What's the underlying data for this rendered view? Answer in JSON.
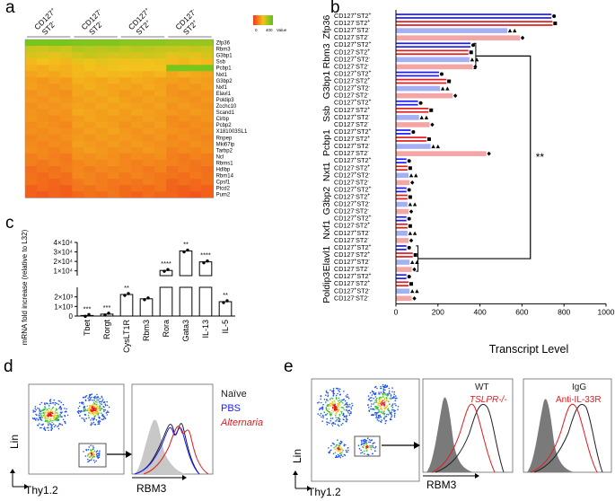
{
  "figure": {
    "panels": {
      "a": "a",
      "b": "b",
      "c": "c",
      "d": "d",
      "e": "e"
    }
  },
  "panel_a": {
    "groups": [
      "CD127+ ST2-",
      "CD127- ST2-",
      "CD127+ ST2+",
      "CD127- ST2+"
    ],
    "group_lines": [
      [
        "CD127",
        "+",
        "ST2",
        "-"
      ],
      [
        "CD127",
        "-",
        "ST2",
        "-"
      ],
      [
        "CD127",
        "+",
        "ST2",
        "+"
      ],
      [
        "CD127",
        "-",
        "ST2",
        "+"
      ]
    ],
    "genes": [
      "Zfp36",
      "Rbm3",
      "G3bp1",
      "Ssb",
      "Pcbp1",
      "Nxt1",
      "G3bp2",
      "Nxf1",
      "Elavl1",
      "Poldip3",
      "Zcchc10",
      "Scand1",
      "Cirbp",
      "Pcbp2",
      "X181003SL1",
      "Rnpep",
      "Mki67ip",
      "Tarbp2",
      "Ncl",
      "Rbms1",
      "Hdlbp",
      "Rbm14",
      "Cpsf1",
      "Ptcd2",
      "Pum2"
    ],
    "legend": {
      "min_label": "0",
      "max_label": "400",
      "title": "Value"
    }
  },
  "chart_data": [
    {
      "type": "bar",
      "panel": "b",
      "xlabel": "Transcript Level",
      "xlim": [
        0,
        1000
      ],
      "xticks": [
        "0",
        "200",
        "400",
        "600",
        "800",
        "1000"
      ],
      "significance": "**",
      "row_labels": [
        "CD127+ST2+",
        "CD127-ST2+",
        "CD127+ST2-",
        "CD127-ST2-"
      ],
      "row_label_lines": [
        [
          "CD127",
          "+",
          "ST2",
          "+"
        ],
        [
          "CD127",
          "-",
          "ST2",
          "+"
        ],
        [
          "CD127",
          "+",
          "ST2",
          "-"
        ],
        [
          "CD127",
          "-",
          "ST2",
          "-"
        ]
      ],
      "groups": [
        {
          "gene": "Zfp36",
          "values": [
            740,
            745,
            530,
            590
          ]
        },
        {
          "gene": "Rbm3",
          "values": [
            355,
            345,
            350,
            365
          ]
        },
        {
          "gene": "G3bp1",
          "values": [
            205,
            240,
            210,
            270
          ]
        },
        {
          "gene": "Ssb",
          "values": [
            105,
            155,
            110,
            160
          ]
        },
        {
          "gene": "Pcbp1",
          "values": [
            70,
            145,
            165,
            430
          ]
        },
        {
          "gene": "Nxt1",
          "values": [
            50,
            55,
            60,
            65
          ]
        },
        {
          "gene": "G3bp2",
          "values": [
            50,
            55,
            55,
            60
          ]
        },
        {
          "gene": "Nxf1",
          "values": [
            50,
            55,
            55,
            60
          ]
        },
        {
          "gene": "Elavl1",
          "values": [
            50,
            80,
            65,
            75
          ]
        },
        {
          "gene": "Poldip3",
          "values": [
            50,
            60,
            65,
            75
          ]
        }
      ]
    },
    {
      "type": "bar",
      "panel": "c",
      "ylabel": "mRNA fold increase (relative to L32)",
      "categories": [
        "Tbet",
        "Rorgt",
        "CysLT1R",
        "Rbm3",
        "Rora",
        "Gata3",
        "IL-13",
        "IL-5"
      ],
      "values": [
        60,
        200,
        2250,
        1800,
        10500,
        31000,
        19500,
        1500
      ],
      "significance": [
        "***",
        "***",
        "**",
        "",
        "****",
        "**",
        "****",
        "**"
      ],
      "yticks_lower": [
        "0",
        "1×10³",
        "2×10³"
      ],
      "yticks_upper": [
        "1×10⁴",
        "2×10⁴",
        "3×10⁴",
        "4×10⁴"
      ],
      "ybreak": [
        3000,
        5000
      ]
    }
  ],
  "panel_d": {
    "dot_axes": {
      "y": "Lin",
      "x": "Thy1.2"
    },
    "histogram_xlabel": "RBM3",
    "legend": [
      {
        "label": "Naïve",
        "color": "#222222"
      },
      {
        "label": "PBS",
        "color": "#1a1aff"
      },
      {
        "label": "Alternaria",
        "color": "#e31a1c"
      }
    ]
  },
  "panel_e": {
    "dot_axes": {
      "y": "Lin",
      "x": "Thy1.2"
    },
    "histogram_xlabel": "RBM3",
    "hist1_legend": [
      {
        "label": "WT",
        "color": "#222222"
      },
      {
        "label": "TSLPR-/-",
        "color": "#e31a1c"
      }
    ],
    "hist2_legend": [
      {
        "label": "IgG",
        "color": "#222222"
      },
      {
        "label": "Anti-IL-33R",
        "color": "#e31a1c"
      }
    ]
  },
  "colors": {
    "red": "#e31a1c",
    "blue": "#1a1aff",
    "light_red": "#f4a5a5",
    "light_blue": "#a5b0f4",
    "gray": "#bdbdbd"
  }
}
